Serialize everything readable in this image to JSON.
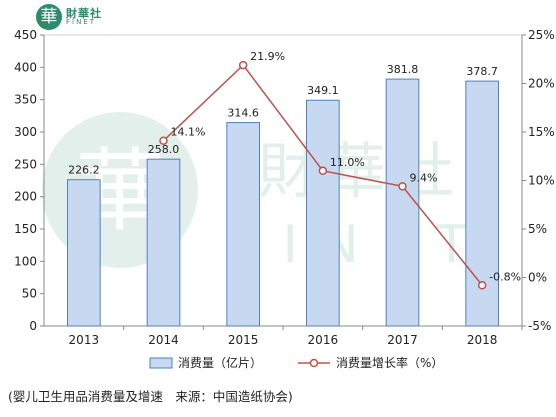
{
  "brand": {
    "mark": "華",
    "name": "財華社",
    "sub": "FINET",
    "watermark_name": "財華社",
    "watermark_sub": "FINET"
  },
  "caption": "(婴儿卫生用品消费量及增速　来源：中国造纸协会)",
  "chart_data": {
    "type": "bar",
    "categories": [
      "2013",
      "2014",
      "2015",
      "2016",
      "2017",
      "2018"
    ],
    "series": [
      {
        "name": "消费量（亿片）",
        "type": "bar",
        "axis": "left",
        "values": [
          226.2,
          258.0,
          314.6,
          349.1,
          381.8,
          378.7
        ],
        "labels": [
          "226.2",
          "258.0",
          "314.6",
          "349.1",
          "381.8",
          "378.7"
        ],
        "color": "#c6d9f1",
        "border": "#4f81bd"
      },
      {
        "name": "消费量增长率（%）",
        "type": "line",
        "axis": "right",
        "values": [
          null,
          14.1,
          21.9,
          11.0,
          9.4,
          -0.8
        ],
        "labels": [
          "",
          "14.1%",
          "21.9%",
          "11.0%",
          "9.4%",
          "-0.8%"
        ],
        "color": "#c0504d"
      }
    ],
    "y_left": {
      "ylim": [
        0,
        450
      ],
      "ticks": [
        "0",
        "50",
        "100",
        "150",
        "200",
        "250",
        "300",
        "350",
        "400",
        "450"
      ]
    },
    "y_right": {
      "ylim": [
        -5,
        25
      ],
      "ticks": [
        "-5%",
        "0%",
        "5%",
        "10%",
        "15%",
        "20%",
        "25%"
      ]
    },
    "grid": false,
    "legend_position": "bottom"
  }
}
